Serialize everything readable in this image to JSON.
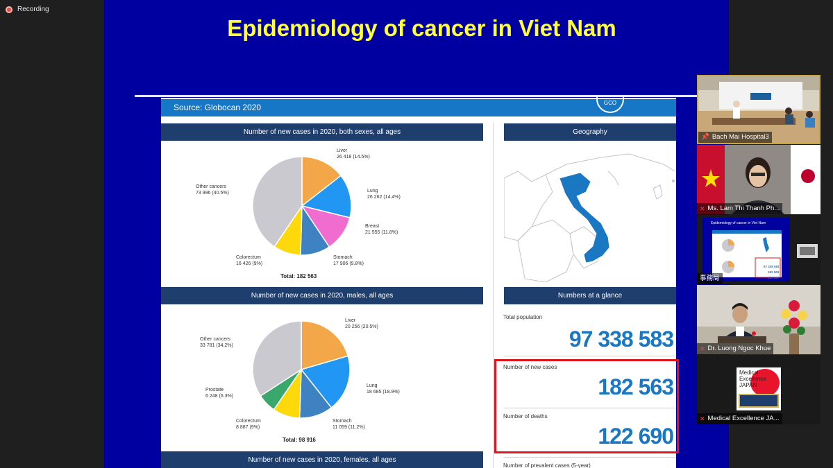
{
  "recording": {
    "label": "Recording"
  },
  "slide": {
    "title": "Epidemiology of cancer in Viet Nam",
    "source": "Source: Globocan 2020",
    "logo": "GCO",
    "panel_both": {
      "title": "Number of new cases in 2020, both sexes, all ages",
      "total": "Total: 182 563",
      "labels": [
        {
          "name": "Liver",
          "value": "26 418 (14.5%)"
        },
        {
          "name": "Lung",
          "value": "26 262 (14.4%)"
        },
        {
          "name": "Breast",
          "value": "21 555 (11.8%)"
        },
        {
          "name": "Stomach",
          "value": "17 906 (9.8%)"
        },
        {
          "name": "Colorectum",
          "value": "16 426 (9%)"
        },
        {
          "name": "Other cancers",
          "value": "73 996 (40.5%)"
        }
      ]
    },
    "panel_males": {
      "title": "Number of new cases in 2020, males, all ages",
      "total": "Total: 98 916",
      "labels": [
        {
          "name": "Liver",
          "value": "20 256 (20.5%)"
        },
        {
          "name": "Lung",
          "value": "18 685 (18.9%)"
        },
        {
          "name": "Stomach",
          "value": "11 059 (11.2%)"
        },
        {
          "name": "Colorectum",
          "value": "8 887 (9%)"
        },
        {
          "name": "Prostate",
          "value": "6 248 (6.3%)"
        },
        {
          "name": "Other cancers",
          "value": "33 781 (34.2%)"
        }
      ]
    },
    "panel_females": {
      "title": "Number of new cases in 2020, females, all ages"
    },
    "geography": {
      "title": "Geography"
    },
    "glance": {
      "title": "Numbers at a glance",
      "population_label": "Total population",
      "population": "97 338 583",
      "new_cases_label": "Number of new cases",
      "new_cases": "182 563",
      "deaths_label": "Number of deaths",
      "deaths": "122 690",
      "prevalent_label": "Number of prevalent cases (5-year)"
    },
    "colors": {
      "liver": "#f4a748",
      "lung": "#2196f3",
      "breast": "#f06ccf",
      "stomach": "#3f82c2",
      "colorectum": "#fdd80a",
      "prostate": "#3aa76d",
      "other": "#c9c9cf"
    }
  },
  "participants": [
    {
      "name": "Bach Mai Hospital3",
      "icon": "pin-icon"
    },
    {
      "name": "Ms. Lam Thi Thanh Ph...",
      "icon": "mic-off-icon"
    },
    {
      "name": "事務局",
      "icon": "none"
    },
    {
      "name": "Dr. Luong Ngoc Khue",
      "icon": "mic-off-icon"
    },
    {
      "name": "Medical Excellence JA...",
      "icon": "mic-off-icon"
    }
  ],
  "mej_logo": {
    "line1": "Medical",
    "line2": "Excellence",
    "line3": "JAPAN"
  },
  "mini_slide": {
    "title": "Epidemiology of cancer in Viet Nam",
    "n1": "97 338 583",
    "n2": "182 563",
    "n3": "122 690"
  },
  "chart_data": [
    {
      "type": "pie",
      "title": "Number of new cases in 2020, both sexes, all ages",
      "categories": [
        "Liver",
        "Lung",
        "Breast",
        "Stomach",
        "Colorectum",
        "Other cancers"
      ],
      "values": [
        26418,
        26262,
        21555,
        17906,
        16426,
        73996
      ]
    },
    {
      "type": "pie",
      "title": "Number of new cases in 2020, males, all ages",
      "categories": [
        "Liver",
        "Lung",
        "Stomach",
        "Colorectum",
        "Prostate",
        "Other cancers"
      ],
      "values": [
        20256,
        18685,
        11059,
        8887,
        6248,
        33781
      ]
    }
  ]
}
